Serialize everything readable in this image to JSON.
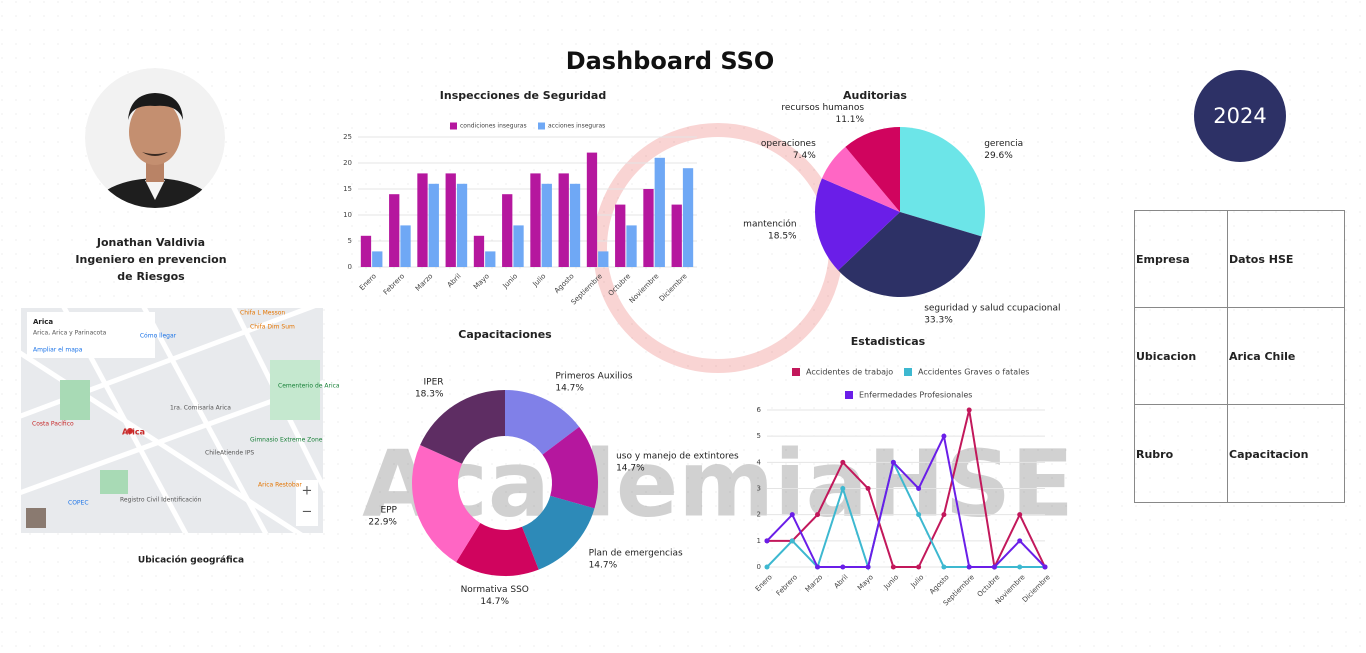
{
  "header": {
    "title": "Dashboard  SSO",
    "year": "2024",
    "watermark": "AcademiaHSE"
  },
  "profile": {
    "name": "Jonathan Valdivia",
    "role_line1": "Ingeniero en prevencion",
    "role_line2": "de Riesgos"
  },
  "map": {
    "caption": "Ubicación geográfica",
    "place": "Arica",
    "place_sub": "Arica, Arica y Parinacota",
    "enlarge": "Ampliar el mapa",
    "directions": "Cómo llegar",
    "labels": [
      "Arica",
      "Costa Pacífico",
      "1ra. Comisaría Arica",
      "Gimnasio Extreme Zone",
      "Registro Civil Identificación",
      "Chifa L Messon",
      "Chifa Dim Sum",
      "Cementerio de Arica",
      "Arica Restobar",
      "ChileAtiende IPS",
      "COPEC"
    ]
  },
  "table": {
    "rows": [
      [
        "Empresa",
        "Datos HSE"
      ],
      [
        "Ubicacion",
        "Arica Chile"
      ],
      [
        "Rubro",
        "Capacitacion"
      ]
    ]
  },
  "chart_data": [
    {
      "type": "bar",
      "title": "Inspecciones de Seguridad",
      "categories": [
        "Enero",
        "Febrero",
        "Marzo",
        "Abril",
        "Mayo",
        "Junio",
        "Julio",
        "Agosto",
        "Septiembre",
        "Octubre",
        "Noviembre",
        "Diciembre"
      ],
      "series": [
        {
          "name": "condiciones inseguras",
          "color": "#b5179e",
          "values": [
            6,
            14,
            18,
            18,
            6,
            14,
            18,
            18,
            22,
            12,
            15,
            12
          ]
        },
        {
          "name": "acciones inseguras",
          "color": "#6fa8f5",
          "values": [
            3,
            8,
            16,
            16,
            3,
            8,
            16,
            16,
            3,
            8,
            21,
            19
          ]
        }
      ],
      "ylim": [
        0,
        25
      ],
      "yticks": [
        0,
        5,
        10,
        15,
        20,
        25
      ],
      "grid": true,
      "legend": "top"
    },
    {
      "type": "pie",
      "title": "Auditorias",
      "categories": [
        "gerencia",
        "seguridad y salud ccupacional",
        "mantención",
        "operaciones",
        "recursos humanos"
      ],
      "values": [
        29.6,
        33.3,
        18.5,
        7.4,
        11.1
      ],
      "value_labels": [
        "29.6%",
        "33.3%",
        "18.5%",
        "7.4%",
        "11.1%"
      ],
      "colors": [
        "#6ce5e8",
        "#2d3166",
        "#6a1ee8",
        "#ff66c4",
        "#d0045e"
      ]
    },
    {
      "type": "donut",
      "title": "Capacitaciones",
      "categories": [
        "Primeros Auxilios",
        "uso y manejo de extintores",
        "Plan de emergencias",
        "Normativa SSO",
        "EPP",
        "IPER"
      ],
      "values": [
        14.7,
        14.7,
        14.7,
        14.7,
        22.9,
        18.3
      ],
      "value_labels": [
        "14.7%",
        "14.7%",
        "14.7%",
        "14.7%",
        "22.9%",
        "18.3%"
      ],
      "colors": [
        "#8080e8",
        "#b5179e",
        "#2d8ab8",
        "#d0045e",
        "#ff66c4",
        "#5e2d63"
      ]
    },
    {
      "type": "line",
      "title": "Estadisticas",
      "categories": [
        "Enero",
        "Febrero",
        "Marzo",
        "Abril",
        "Mayo",
        "Junio",
        "Julio",
        "Agosto",
        "Septiembre",
        "Octubre",
        "Noviembre",
        "Diciembre"
      ],
      "series": [
        {
          "name": "Accidentes de trabajo",
          "color": "#c2185b",
          "values": [
            1,
            1,
            2,
            4,
            3,
            0,
            0,
            2,
            6,
            0,
            2,
            0
          ]
        },
        {
          "name": "Accidentes Graves o fatales",
          "color": "#3db8d0",
          "values": [
            0,
            1,
            0,
            3,
            0,
            4,
            2,
            0,
            0,
            0,
            0,
            0
          ]
        },
        {
          "name": "Enfermedades Profesionales",
          "color": "#6a1ee8",
          "values": [
            1,
            2,
            0,
            0,
            0,
            4,
            3,
            5,
            0,
            0,
            1,
            0
          ]
        }
      ],
      "ylim": [
        0,
        6
      ],
      "yticks": [
        0,
        1,
        2,
        3,
        4,
        5,
        6
      ],
      "grid": true,
      "legend": "top"
    }
  ]
}
